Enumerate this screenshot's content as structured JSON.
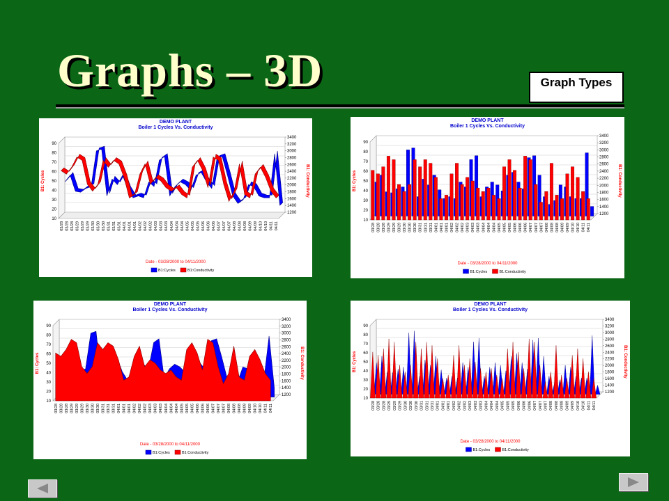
{
  "slide": {
    "title": "Graphs – 3D",
    "button": "Graph Types"
  },
  "chart_data": [
    {
      "type": "line",
      "title": "DEMO PLANT",
      "subtitle": "Boiler 1 Cycles Vs. Conductivity",
      "ylabel": "B1: Cycles",
      "y2label": "B1: Conductivity",
      "xlabel": "Date - 03/28/2000 to 04/11/2000",
      "categories": [
        "03/28",
        "03/28",
        "03/28",
        "03/29",
        "03/29",
        "03/29",
        "03/30",
        "03/30",
        "03/30",
        "03/31",
        "03/31",
        "03/31",
        "04/01",
        "04/01",
        "04/01",
        "04/02",
        "04/02",
        "04/02",
        "04/03",
        "04/03",
        "04/03",
        "04/04",
        "04/04",
        "04/04",
        "04/05",
        "04/05",
        "04/05",
        "04/06",
        "04/06",
        "04/06",
        "04/07",
        "04/07",
        "04/07",
        "04/08",
        "04/08",
        "04/08",
        "04/09",
        "04/09",
        "04/10",
        "04/10",
        "04/11",
        "04/11"
      ],
      "series": [
        {
          "name": "B1:Cycles",
          "color": "#0000ff",
          "values": [
            45,
            52,
            35,
            34,
            38,
            40,
            78,
            80,
            30,
            48,
            42,
            52,
            37,
            28,
            30,
            28,
            45,
            40,
            68,
            72,
            30,
            40,
            45,
            42,
            36,
            52,
            55,
            45,
            38,
            70,
            72,
            52,
            30,
            22,
            26,
            42,
            40,
            30,
            28,
            28,
            75,
            20
          ]
        },
        {
          "name": "B1:Conductivity",
          "color": "#ff0000",
          "axis": "y2",
          "values": [
            2600,
            2500,
            2700,
            3000,
            2900,
            2200,
            2000,
            2200,
            2900,
            2700,
            2900,
            2800,
            2400,
            1800,
            1900,
            2500,
            2800,
            2200,
            2400,
            2300,
            2100,
            2000,
            2100,
            1900,
            1800,
            2700,
            2900,
            2600,
            2100,
            3000,
            2900,
            2200,
            1700,
            2000,
            2800,
            1900,
            1800,
            2500,
            2700,
            2400,
            2000,
            1800
          ]
        }
      ],
      "ylim": [
        10,
        90
      ],
      "yticks": [
        10,
        20,
        30,
        40,
        50,
        60,
        70,
        80,
        90
      ],
      "y2lim": [
        1200,
        3400
      ],
      "y2ticks": [
        1200,
        1400,
        1600,
        1800,
        2000,
        2200,
        2400,
        2600,
        2800,
        3000,
        3200,
        3400
      ]
    },
    {
      "type": "bar",
      "title": "DEMO PLANT",
      "subtitle": "Boiler 1 Cycles Vs. Conductivity",
      "ylabel": "B1: Cycles",
      "y2label": "B1: Conductivity",
      "xlabel": "Date - 03/28/2000 to 04/11/2000",
      "categories": [
        "03/28",
        "03/28",
        "03/28",
        "03/29",
        "03/29",
        "03/29",
        "03/30",
        "03/30",
        "03/30",
        "03/31",
        "03/31",
        "03/31",
        "04/01",
        "04/01",
        "04/01",
        "04/02",
        "04/02",
        "04/02",
        "04/03",
        "04/03",
        "04/03",
        "04/04",
        "04/04",
        "04/04",
        "04/05",
        "04/05",
        "04/05",
        "04/06",
        "04/06",
        "04/06",
        "04/07",
        "04/07",
        "04/07",
        "04/08",
        "04/08",
        "04/08",
        "04/09",
        "04/09",
        "04/10",
        "04/10",
        "04/11",
        "04/11"
      ],
      "series": [
        {
          "name": "B1:Cycles",
          "color": "#0000ff",
          "values": [
            45,
            52,
            35,
            34,
            38,
            40,
            78,
            80,
            30,
            48,
            42,
            52,
            37,
            28,
            30,
            28,
            45,
            40,
            68,
            72,
            30,
            40,
            45,
            42,
            36,
            52,
            55,
            45,
            38,
            70,
            72,
            52,
            30,
            22,
            26,
            42,
            40,
            30,
            28,
            28,
            75,
            20
          ]
        },
        {
          "name": "B1:Conductivity",
          "color": "#ff0000",
          "axis": "y2",
          "values": [
            2600,
            2500,
            2700,
            3000,
            2900,
            2200,
            2000,
            2200,
            2900,
            2700,
            2900,
            2800,
            2400,
            1800,
            1900,
            2500,
            2800,
            2200,
            2400,
            2300,
            2100,
            2000,
            2100,
            1900,
            1800,
            2700,
            2900,
            2600,
            2100,
            3000,
            2900,
            2200,
            1700,
            2000,
            2800,
            1900,
            1800,
            2500,
            2700,
            2400,
            2000,
            1800
          ]
        }
      ],
      "ylim": [
        10,
        90
      ],
      "yticks": [
        10,
        20,
        30,
        40,
        50,
        60,
        70,
        80,
        90
      ],
      "y2lim": [
        1200,
        3400
      ],
      "y2ticks": [
        1200,
        1400,
        1600,
        1800,
        2000,
        2200,
        2400,
        2600,
        2800,
        3000,
        3200,
        3400
      ]
    },
    {
      "type": "area",
      "title": "DEMO PLANT",
      "subtitle": "Boiler 1 Cycles Vs. Conductivity",
      "ylabel": "B1: Cycles",
      "y2label": "B1: Conductivity",
      "xlabel": "Date - 03/28/2000 to 04/11/2000",
      "categories": [
        "03/28",
        "03/28",
        "03/28",
        "03/29",
        "03/29",
        "03/29",
        "03/30",
        "03/30",
        "03/30",
        "03/31",
        "03/31",
        "03/31",
        "04/01",
        "04/01",
        "04/01",
        "04/02",
        "04/02",
        "04/02",
        "04/03",
        "04/03",
        "04/03",
        "04/04",
        "04/04",
        "04/04",
        "04/05",
        "04/05",
        "04/05",
        "04/06",
        "04/06",
        "04/06",
        "04/07",
        "04/07",
        "04/07",
        "04/08",
        "04/08",
        "04/08",
        "04/09",
        "04/09",
        "04/10",
        "04/10",
        "04/11",
        "04/11"
      ],
      "series": [
        {
          "name": "B1:Cycles",
          "color": "#0000ff",
          "values": [
            45,
            52,
            35,
            34,
            38,
            40,
            78,
            80,
            30,
            48,
            42,
            52,
            37,
            28,
            30,
            28,
            45,
            40,
            68,
            72,
            30,
            40,
            45,
            42,
            36,
            52,
            55,
            45,
            38,
            70,
            72,
            52,
            30,
            22,
            26,
            42,
            40,
            30,
            28,
            28,
            75,
            20
          ]
        },
        {
          "name": "B1:Conductivity",
          "color": "#ff0000",
          "axis": "y2",
          "values": [
            2600,
            2500,
            2700,
            3000,
            2900,
            2200,
            2000,
            2200,
            2900,
            2700,
            2900,
            2800,
            2400,
            1800,
            1900,
            2500,
            2800,
            2200,
            2400,
            2300,
            2100,
            2000,
            2100,
            1900,
            1800,
            2700,
            2900,
            2600,
            2100,
            3000,
            2900,
            2200,
            1700,
            2000,
            2800,
            1900,
            1800,
            2500,
            2700,
            2400,
            2000,
            1800
          ]
        }
      ],
      "ylim": [
        10,
        90
      ],
      "yticks": [
        10,
        20,
        30,
        40,
        50,
        60,
        70,
        80,
        90
      ],
      "y2lim": [
        1200,
        3400
      ],
      "y2ticks": [
        1200,
        1400,
        1600,
        1800,
        2000,
        2200,
        2400,
        2600,
        2800,
        3000,
        3200,
        3400
      ]
    },
    {
      "type": "spike",
      "title": "DEMO PLANT",
      "subtitle": "Boiler 1 Cycles Vs. Conductivity",
      "ylabel": "B1: Cycles",
      "y2label": "B1: Conductivity",
      "xlabel": "Date - 03/28/2000 to 04/11/2000",
      "categories": [
        "03/28",
        "03/28",
        "03/28",
        "03/29",
        "03/29",
        "03/29",
        "03/30",
        "03/30",
        "03/30",
        "03/31",
        "03/31",
        "03/31",
        "04/01",
        "04/01",
        "04/01",
        "04/02",
        "04/02",
        "04/02",
        "04/03",
        "04/03",
        "04/03",
        "04/04",
        "04/04",
        "04/04",
        "04/05",
        "04/05",
        "04/05",
        "04/06",
        "04/06",
        "04/06",
        "04/07",
        "04/07",
        "04/07",
        "04/08",
        "04/08",
        "04/08",
        "04/09",
        "04/09",
        "04/10",
        "04/10",
        "04/11",
        "04/11"
      ],
      "series": [
        {
          "name": "B1:Cycles",
          "color": "#0000ff",
          "values": [
            45,
            52,
            35,
            34,
            38,
            40,
            78,
            80,
            30,
            48,
            42,
            52,
            37,
            28,
            30,
            28,
            45,
            40,
            68,
            72,
            30,
            40,
            45,
            42,
            36,
            52,
            55,
            45,
            38,
            70,
            72,
            52,
            30,
            22,
            26,
            42,
            40,
            30,
            28,
            28,
            75,
            20
          ]
        },
        {
          "name": "B1:Conductivity",
          "color": "#ff0000",
          "axis": "y2",
          "values": [
            2600,
            2500,
            2700,
            3000,
            2900,
            2200,
            2000,
            2200,
            2900,
            2700,
            2900,
            2800,
            2400,
            1800,
            1900,
            2500,
            2800,
            2200,
            2400,
            2300,
            2100,
            2000,
            2100,
            1900,
            1800,
            2700,
            2900,
            2600,
            2100,
            3000,
            2900,
            2200,
            1700,
            2000,
            2800,
            1900,
            1800,
            2500,
            2700,
            2400,
            2000,
            1800
          ]
        }
      ],
      "ylim": [
        10,
        90
      ],
      "yticks": [
        10,
        20,
        30,
        40,
        50,
        60,
        70,
        80,
        90
      ],
      "y2lim": [
        1200,
        3400
      ],
      "y2ticks": [
        1200,
        1400,
        1600,
        1800,
        2000,
        2200,
        2400,
        2600,
        2800,
        3000,
        3200,
        3400
      ]
    }
  ]
}
